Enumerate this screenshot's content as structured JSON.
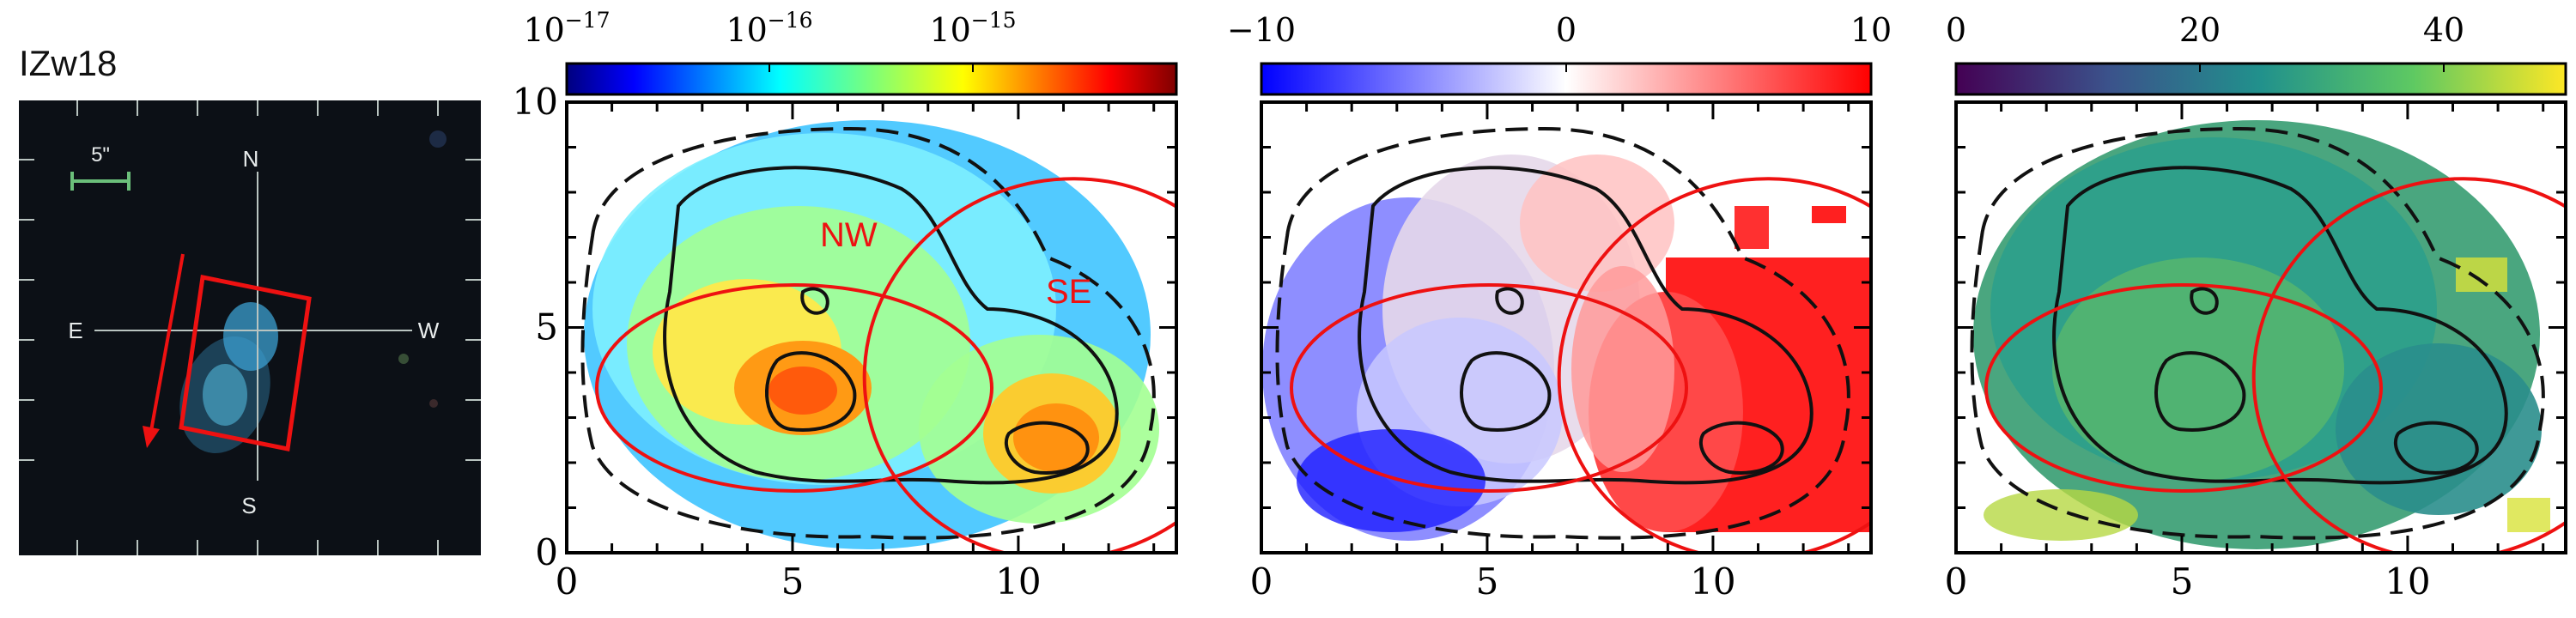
{
  "figure": {
    "galaxy_label": "IZw18",
    "thumbnail": {
      "scale_label": "5\"",
      "compass": {
        "north": "N",
        "south": "S",
        "east": "E",
        "west": "W"
      }
    }
  },
  "chart_data": [
    {
      "type": "heatmap",
      "panel": "flux-map",
      "title": "",
      "xlabel": "",
      "ylabel": "",
      "xlim": [
        0,
        13.5
      ],
      "ylim": [
        0,
        10
      ],
      "xticks": [
        "0",
        "5",
        "10"
      ],
      "yticks": [
        "0",
        "5",
        "10"
      ],
      "colorbar": {
        "colormap": "jet",
        "scale": "log",
        "range": [
          1e-17,
          1e-14
        ],
        "ticks": [
          "10^-17",
          "10^-16",
          "10^-15"
        ]
      },
      "annotations": [
        "NW",
        "SE"
      ],
      "region_color": "#ee1111"
    },
    {
      "type": "heatmap",
      "panel": "velocity-map",
      "title": "",
      "xlabel": "",
      "ylabel": "",
      "xlim": [
        0,
        13.5
      ],
      "ylim": [
        0,
        10
      ],
      "xticks": [
        "0",
        "5",
        "10"
      ],
      "colorbar": {
        "colormap": "bwr",
        "scale": "linear",
        "range": [
          -10,
          10
        ],
        "ticks": [
          "−10",
          "0",
          "10"
        ]
      }
    },
    {
      "type": "heatmap",
      "panel": "dispersion-map",
      "title": "",
      "xlabel": "",
      "ylabel": "",
      "xlim": [
        0,
        13.5
      ],
      "ylim": [
        0,
        10
      ],
      "xticks": [
        "0",
        "5",
        "10"
      ],
      "colorbar": {
        "colormap": "viridis",
        "scale": "linear",
        "range": [
          0,
          50
        ],
        "ticks": [
          "0",
          "20",
          "40"
        ]
      }
    }
  ]
}
